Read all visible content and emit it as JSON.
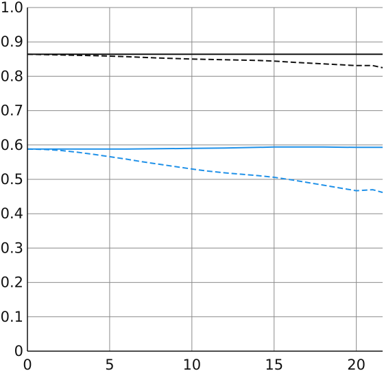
{
  "chart_data": {
    "type": "line",
    "title": "",
    "xlabel": "",
    "ylabel": "",
    "xlim": [
      0,
      21.6
    ],
    "ylim": [
      0,
      1.0
    ],
    "grid": true,
    "legend": "none",
    "x_ticks": [
      0,
      5,
      10,
      15,
      20
    ],
    "x_tick_labels": [
      "0",
      "5",
      "10",
      "15",
      "20"
    ],
    "y_ticks": [
      0,
      0.1,
      0.2,
      0.3,
      0.4,
      0.5,
      0.6,
      0.7,
      0.8,
      0.9,
      1.0
    ],
    "y_tick_labels": [
      "0",
      "0.1",
      "0.2",
      "0.3",
      "0.4",
      "0.5",
      "0.6",
      "0.7",
      "0.8",
      "0.9",
      "1.0"
    ],
    "series": [
      {
        "color": "#111111",
        "style": "solid",
        "x": [
          0,
          2,
          4,
          6,
          8,
          10,
          12,
          14,
          16,
          18,
          20,
          21.6
        ],
        "y": [
          0.864,
          0.864,
          0.864,
          0.864,
          0.864,
          0.864,
          0.864,
          0.864,
          0.864,
          0.864,
          0.864,
          0.864
        ]
      },
      {
        "color": "#111111",
        "style": "dashed",
        "x": [
          0,
          2,
          4,
          6,
          8,
          10,
          12,
          14,
          15,
          16,
          18,
          20,
          21,
          21.6
        ],
        "y": [
          0.864,
          0.862,
          0.86,
          0.857,
          0.853,
          0.85,
          0.848,
          0.846,
          0.844,
          0.841,
          0.836,
          0.831,
          0.831,
          0.825
        ]
      },
      {
        "color": "#1e90e8",
        "style": "solid",
        "x": [
          0,
          2,
          4,
          6,
          8,
          10,
          12,
          14,
          15,
          16,
          17,
          18,
          20,
          21.6
        ],
        "y": [
          0.588,
          0.588,
          0.588,
          0.588,
          0.589,
          0.59,
          0.591,
          0.593,
          0.594,
          0.594,
          0.594,
          0.594,
          0.593,
          0.593
        ]
      },
      {
        "color": "#1e90e8",
        "style": "dashed",
        "x": [
          0,
          1,
          2,
          3,
          4,
          5,
          6,
          7,
          8,
          9,
          10,
          11,
          12,
          13,
          14,
          15,
          16,
          17,
          18,
          19,
          20,
          21,
          21.6
        ],
        "y": [
          0.588,
          0.587,
          0.584,
          0.579,
          0.573,
          0.566,
          0.559,
          0.551,
          0.544,
          0.537,
          0.53,
          0.524,
          0.519,
          0.515,
          0.511,
          0.506,
          0.499,
          0.491,
          0.483,
          0.475,
          0.467,
          0.47,
          0.462
        ]
      }
    ]
  }
}
